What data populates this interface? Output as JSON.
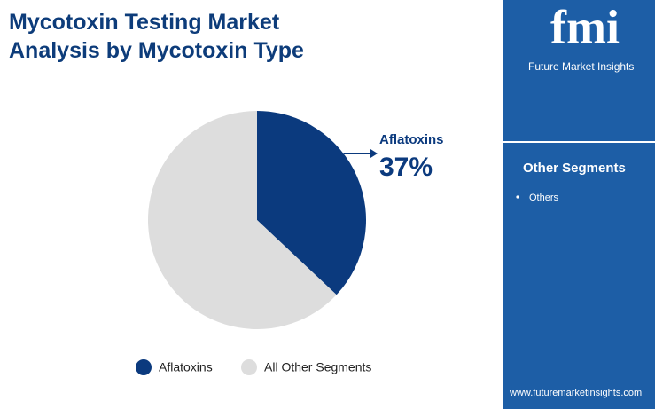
{
  "chart_data": {
    "type": "pie",
    "title": "Mycotoxin Testing Market Analysis by Mycotoxin Type",
    "categories": [
      "Aflatoxins",
      "All Other Segments"
    ],
    "values": [
      37,
      63
    ],
    "value_labels": [
      "37%",
      null
    ],
    "colors": [
      "#0b3a7e",
      "#dddddd"
    ]
  },
  "sidebar": {
    "brand": "fmi",
    "brand_name": "Future Market Insights",
    "heading": "Other Segments",
    "items": [
      "Others"
    ],
    "website": "www.futuremarketinsights.com"
  }
}
